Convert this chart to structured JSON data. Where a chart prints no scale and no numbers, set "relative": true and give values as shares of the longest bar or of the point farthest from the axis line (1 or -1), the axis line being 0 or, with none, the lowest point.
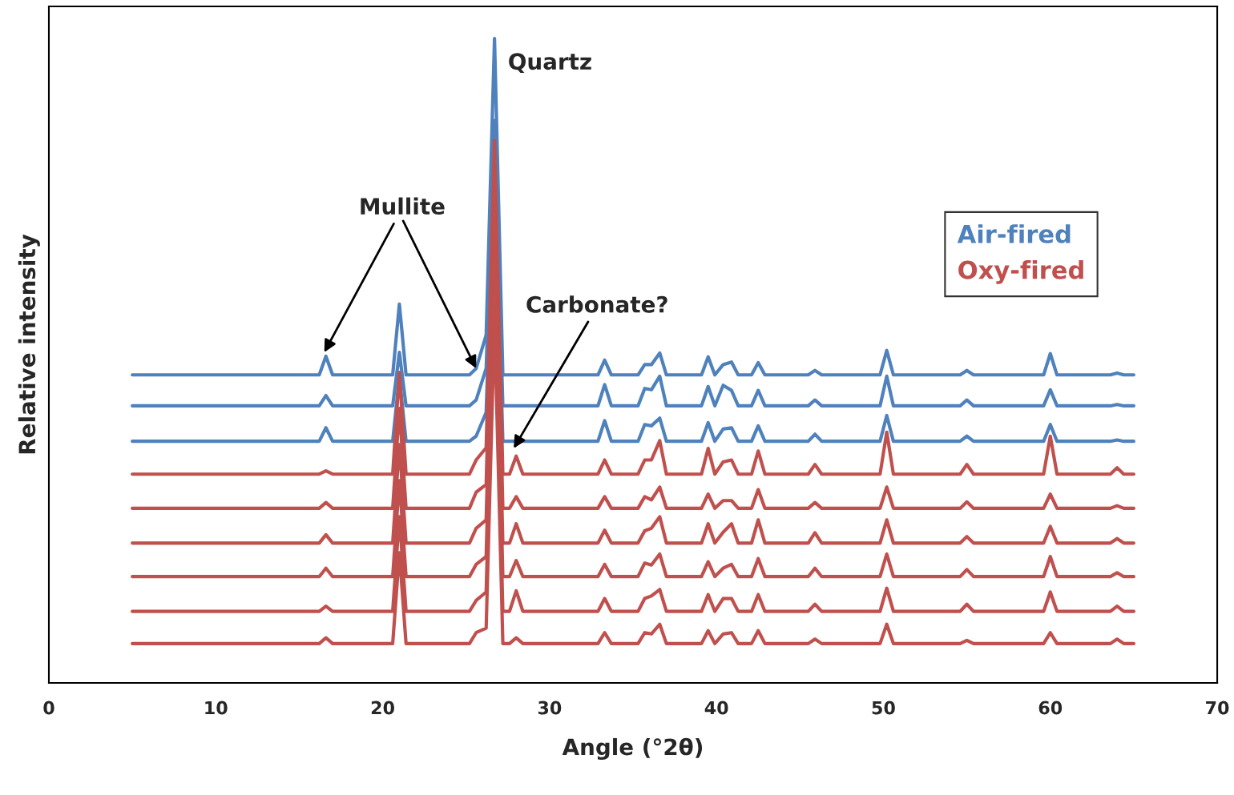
{
  "chart_data": {
    "type": "line",
    "relative": true,
    "xlabel": "Angle (°2θ)",
    "ylabel": "Relative intensity",
    "xlim": [
      0,
      70
    ],
    "xticks": [
      0,
      10,
      20,
      30,
      40,
      50,
      60,
      70
    ],
    "legend": "top right",
    "grid": false,
    "marker": "none",
    "line_style": "solid",
    "x": [
      5,
      16.2,
      16.6,
      17.0,
      20.6,
      21.0,
      21.4,
      25.2,
      25.6,
      26.2,
      26.7,
      27.2,
      27.6,
      28.0,
      28.4,
      32.9,
      33.3,
      33.7,
      35.3,
      35.7,
      36.1,
      36.6,
      37.0,
      39.1,
      39.5,
      39.9,
      40.4,
      40.9,
      41.3,
      42.1,
      42.5,
      42.9,
      45.5,
      45.9,
      46.3,
      49.8,
      50.2,
      50.6,
      54.6,
      55.0,
      55.4,
      59.6,
      60.0,
      60.4,
      63.6,
      64.0,
      64.4,
      65
    ],
    "series": [
      {
        "name": "Air-fired",
        "color": "#4f81bd",
        "values": [
          0.478,
          0.478,
          0.507,
          0.478,
          0.478,
          0.588,
          0.478,
          0.478,
          0.488,
          0.54,
          1.0,
          0.478,
          0.478,
          0.478,
          0.478,
          0.478,
          0.501,
          0.478,
          0.478,
          0.494,
          0.494,
          0.512,
          0.478,
          0.478,
          0.506,
          0.478,
          0.494,
          0.498,
          0.478,
          0.478,
          0.497,
          0.478,
          0.478,
          0.485,
          0.478,
          0.478,
          0.516,
          0.478,
          0.478,
          0.485,
          0.478,
          0.478,
          0.511,
          0.478,
          0.478,
          0.481,
          0.478,
          0.478
        ]
      },
      {
        "color": "#4f81bd",
        "values": [
          0.43,
          0.43,
          0.446,
          0.43,
          0.43,
          0.513,
          0.43,
          0.43,
          0.439,
          0.488,
          0.873,
          0.43,
          0.43,
          0.43,
          0.43,
          0.43,
          0.463,
          0.43,
          0.43,
          0.457,
          0.455,
          0.476,
          0.43,
          0.43,
          0.46,
          0.43,
          0.462,
          0.454,
          0.43,
          0.43,
          0.454,
          0.43,
          0.43,
          0.439,
          0.43,
          0.43,
          0.476,
          0.43,
          0.43,
          0.439,
          0.43,
          0.43,
          0.455,
          0.43,
          0.43,
          0.432,
          0.43,
          0.43
        ]
      },
      {
        "color": "#4f81bd",
        "values": [
          0.375,
          0.375,
          0.396,
          0.375,
          0.375,
          0.476,
          0.375,
          0.375,
          0.383,
          0.42,
          0.811,
          0.375,
          0.375,
          0.375,
          0.375,
          0.375,
          0.407,
          0.375,
          0.375,
          0.401,
          0.399,
          0.411,
          0.375,
          0.375,
          0.404,
          0.375,
          0.394,
          0.396,
          0.375,
          0.375,
          0.399,
          0.375,
          0.375,
          0.386,
          0.375,
          0.375,
          0.415,
          0.375,
          0.375,
          0.383,
          0.375,
          0.375,
          0.401,
          0.375,
          0.375,
          0.377,
          0.375,
          0.375
        ]
      },
      {
        "name": "Oxy-fired",
        "color": "#c0504d",
        "values": [
          0.324,
          0.324,
          0.329,
          0.324,
          0.324,
          0.482,
          0.324,
          0.324,
          0.346,
          0.365,
          0.842,
          0.324,
          0.324,
          0.352,
          0.324,
          0.324,
          0.346,
          0.324,
          0.324,
          0.346,
          0.346,
          0.376,
          0.324,
          0.324,
          0.364,
          0.324,
          0.343,
          0.346,
          0.324,
          0.324,
          0.36,
          0.324,
          0.324,
          0.339,
          0.324,
          0.324,
          0.389,
          0.324,
          0.324,
          0.339,
          0.324,
          0.324,
          0.383,
          0.324,
          0.324,
          0.334,
          0.324,
          0.324
        ]
      },
      {
        "color": "#c0504d",
        "values": [
          0.271,
          0.271,
          0.28,
          0.271,
          0.271,
          0.426,
          0.271,
          0.271,
          0.296,
          0.308,
          0.786,
          0.271,
          0.271,
          0.289,
          0.271,
          0.271,
          0.289,
          0.271,
          0.271,
          0.289,
          0.284,
          0.304,
          0.271,
          0.271,
          0.293,
          0.271,
          0.283,
          0.283,
          0.271,
          0.271,
          0.3,
          0.271,
          0.271,
          0.28,
          0.271,
          0.271,
          0.304,
          0.271,
          0.271,
          0.281,
          0.271,
          0.271,
          0.293,
          0.271,
          0.271,
          0.275,
          0.271,
          0.271
        ]
      },
      {
        "color": "#c0504d",
        "values": [
          0.217,
          0.217,
          0.23,
          0.217,
          0.217,
          0.37,
          0.217,
          0.217,
          0.24,
          0.253,
          0.73,
          0.217,
          0.217,
          0.247,
          0.217,
          0.217,
          0.237,
          0.217,
          0.217,
          0.236,
          0.24,
          0.258,
          0.217,
          0.217,
          0.247,
          0.217,
          0.234,
          0.247,
          0.217,
          0.217,
          0.253,
          0.217,
          0.217,
          0.233,
          0.217,
          0.217,
          0.253,
          0.217,
          0.217,
          0.227,
          0.217,
          0.217,
          0.243,
          0.217,
          0.217,
          0.224,
          0.217,
          0.217
        ]
      },
      {
        "color": "#c0504d",
        "values": [
          0.165,
          0.165,
          0.178,
          0.165,
          0.165,
          0.314,
          0.165,
          0.165,
          0.184,
          0.196,
          0.675,
          0.165,
          0.165,
          0.19,
          0.165,
          0.165,
          0.184,
          0.165,
          0.165,
          0.186,
          0.183,
          0.2,
          0.165,
          0.165,
          0.188,
          0.165,
          0.178,
          0.184,
          0.165,
          0.165,
          0.193,
          0.165,
          0.165,
          0.178,
          0.165,
          0.165,
          0.2,
          0.165,
          0.165,
          0.176,
          0.165,
          0.165,
          0.196,
          0.165,
          0.165,
          0.171,
          0.165,
          0.165
        ]
      },
      {
        "color": "#c0504d",
        "values": [
          0.111,
          0.111,
          0.119,
          0.111,
          0.111,
          0.258,
          0.111,
          0.111,
          0.128,
          0.141,
          0.619,
          0.111,
          0.111,
          0.143,
          0.111,
          0.111,
          0.131,
          0.111,
          0.111,
          0.131,
          0.135,
          0.145,
          0.111,
          0.111,
          0.137,
          0.111,
          0.131,
          0.131,
          0.111,
          0.111,
          0.137,
          0.111,
          0.111,
          0.122,
          0.111,
          0.111,
          0.147,
          0.111,
          0.111,
          0.122,
          0.111,
          0.111,
          0.141,
          0.111,
          0.111,
          0.119,
          0.111,
          0.111
        ]
      },
      {
        "color": "#c0504d",
        "values": [
          0.061,
          0.061,
          0.07,
          0.061,
          0.061,
          0.202,
          0.061,
          0.061,
          0.078,
          0.085,
          0.563,
          0.061,
          0.061,
          0.07,
          0.061,
          0.061,
          0.078,
          0.061,
          0.061,
          0.078,
          0.076,
          0.091,
          0.061,
          0.061,
          0.081,
          0.061,
          0.076,
          0.078,
          0.061,
          0.061,
          0.081,
          0.061,
          0.061,
          0.068,
          0.061,
          0.061,
          0.091,
          0.061,
          0.061,
          0.066,
          0.061,
          0.061,
          0.078,
          0.061,
          0.061,
          0.068,
          0.061,
          0.061
        ]
      }
    ],
    "annotations": [
      {
        "text": "Quartz",
        "x": 26.7,
        "y": 1.0
      },
      {
        "text": "Mullite",
        "x": 16.5,
        "y": 0.513
      },
      {
        "text": "Carbonate?",
        "x": 27.85,
        "y": 0.364
      }
    ]
  }
}
